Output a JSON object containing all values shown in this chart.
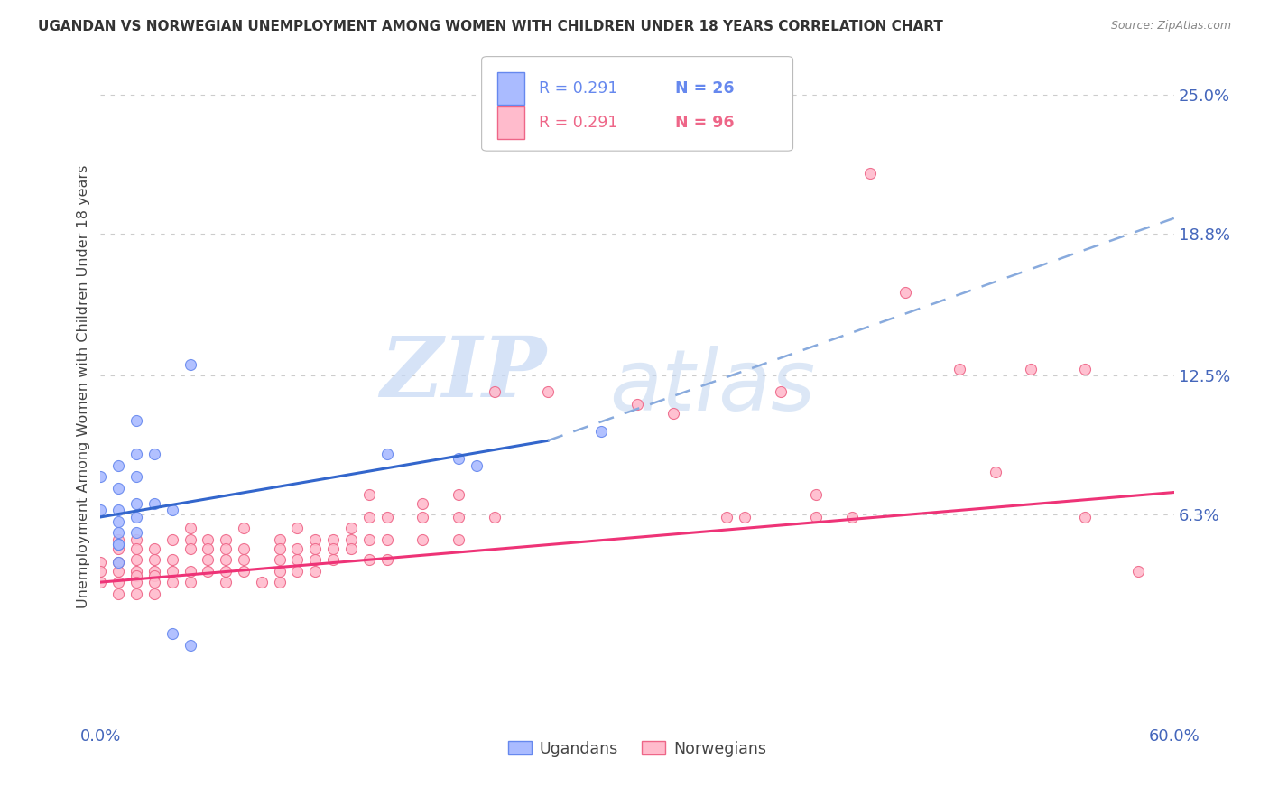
{
  "title": "UGANDAN VS NORWEGIAN UNEMPLOYMENT AMONG WOMEN WITH CHILDREN UNDER 18 YEARS CORRELATION CHART",
  "source": "Source: ZipAtlas.com",
  "ylabel": "Unemployment Among Women with Children Under 18 years",
  "xlim": [
    0.0,
    0.6
  ],
  "ylim": [
    -0.03,
    0.27
  ],
  "xticks": [
    0.0,
    0.1,
    0.2,
    0.3,
    0.4,
    0.5,
    0.6
  ],
  "xticklabels": [
    "0.0%",
    "",
    "",
    "",
    "",
    "",
    "60.0%"
  ],
  "ytick_positions": [
    0.063,
    0.125,
    0.188,
    0.25
  ],
  "ytick_labels": [
    "6.3%",
    "12.5%",
    "18.8%",
    "25.0%"
  ],
  "background_color": "#ffffff",
  "grid_color": "#cccccc",
  "watermark_zip": "ZIP",
  "watermark_atlas": "atlas",
  "ugandan_points": [
    [
      0.0,
      0.08
    ],
    [
      0.0,
      0.065
    ],
    [
      0.01,
      0.085
    ],
    [
      0.01,
      0.075
    ],
    [
      0.01,
      0.065
    ],
    [
      0.01,
      0.06
    ],
    [
      0.01,
      0.055
    ],
    [
      0.01,
      0.05
    ],
    [
      0.01,
      0.05
    ],
    [
      0.01,
      0.042
    ],
    [
      0.02,
      0.105
    ],
    [
      0.02,
      0.09
    ],
    [
      0.02,
      0.08
    ],
    [
      0.02,
      0.068
    ],
    [
      0.02,
      0.062
    ],
    [
      0.02,
      0.055
    ],
    [
      0.03,
      0.09
    ],
    [
      0.03,
      0.068
    ],
    [
      0.04,
      0.065
    ],
    [
      0.05,
      0.13
    ],
    [
      0.16,
      0.09
    ],
    [
      0.2,
      0.088
    ],
    [
      0.21,
      0.085
    ],
    [
      0.28,
      0.1
    ],
    [
      0.04,
      0.01
    ],
    [
      0.05,
      0.005
    ]
  ],
  "norwegian_points": [
    [
      0.0,
      0.042
    ],
    [
      0.0,
      0.038
    ],
    [
      0.0,
      0.033
    ],
    [
      0.01,
      0.052
    ],
    [
      0.01,
      0.048
    ],
    [
      0.01,
      0.042
    ],
    [
      0.01,
      0.038
    ],
    [
      0.01,
      0.033
    ],
    [
      0.01,
      0.028
    ],
    [
      0.02,
      0.052
    ],
    [
      0.02,
      0.048
    ],
    [
      0.02,
      0.043
    ],
    [
      0.02,
      0.038
    ],
    [
      0.02,
      0.036
    ],
    [
      0.02,
      0.033
    ],
    [
      0.02,
      0.028
    ],
    [
      0.03,
      0.048
    ],
    [
      0.03,
      0.043
    ],
    [
      0.03,
      0.038
    ],
    [
      0.03,
      0.036
    ],
    [
      0.03,
      0.033
    ],
    [
      0.03,
      0.028
    ],
    [
      0.04,
      0.052
    ],
    [
      0.04,
      0.043
    ],
    [
      0.04,
      0.038
    ],
    [
      0.04,
      0.033
    ],
    [
      0.05,
      0.057
    ],
    [
      0.05,
      0.052
    ],
    [
      0.05,
      0.048
    ],
    [
      0.05,
      0.038
    ],
    [
      0.05,
      0.033
    ],
    [
      0.06,
      0.052
    ],
    [
      0.06,
      0.048
    ],
    [
      0.06,
      0.043
    ],
    [
      0.06,
      0.038
    ],
    [
      0.07,
      0.052
    ],
    [
      0.07,
      0.048
    ],
    [
      0.07,
      0.043
    ],
    [
      0.07,
      0.038
    ],
    [
      0.07,
      0.033
    ],
    [
      0.08,
      0.057
    ],
    [
      0.08,
      0.048
    ],
    [
      0.08,
      0.043
    ],
    [
      0.08,
      0.038
    ],
    [
      0.09,
      0.033
    ],
    [
      0.1,
      0.052
    ],
    [
      0.1,
      0.048
    ],
    [
      0.1,
      0.043
    ],
    [
      0.1,
      0.038
    ],
    [
      0.1,
      0.033
    ],
    [
      0.11,
      0.057
    ],
    [
      0.11,
      0.048
    ],
    [
      0.11,
      0.043
    ],
    [
      0.11,
      0.038
    ],
    [
      0.12,
      0.052
    ],
    [
      0.12,
      0.048
    ],
    [
      0.12,
      0.043
    ],
    [
      0.12,
      0.038
    ],
    [
      0.13,
      0.052
    ],
    [
      0.13,
      0.048
    ],
    [
      0.13,
      0.043
    ],
    [
      0.14,
      0.057
    ],
    [
      0.14,
      0.052
    ],
    [
      0.14,
      0.048
    ],
    [
      0.15,
      0.072
    ],
    [
      0.15,
      0.062
    ],
    [
      0.15,
      0.052
    ],
    [
      0.15,
      0.043
    ],
    [
      0.16,
      0.062
    ],
    [
      0.16,
      0.052
    ],
    [
      0.16,
      0.043
    ],
    [
      0.18,
      0.068
    ],
    [
      0.18,
      0.062
    ],
    [
      0.18,
      0.052
    ],
    [
      0.2,
      0.072
    ],
    [
      0.2,
      0.062
    ],
    [
      0.2,
      0.052
    ],
    [
      0.22,
      0.118
    ],
    [
      0.22,
      0.062
    ],
    [
      0.25,
      0.118
    ],
    [
      0.3,
      0.112
    ],
    [
      0.32,
      0.108
    ],
    [
      0.35,
      0.062
    ],
    [
      0.36,
      0.062
    ],
    [
      0.38,
      0.118
    ],
    [
      0.4,
      0.072
    ],
    [
      0.4,
      0.062
    ],
    [
      0.42,
      0.062
    ],
    [
      0.43,
      0.215
    ],
    [
      0.45,
      0.162
    ],
    [
      0.48,
      0.128
    ],
    [
      0.5,
      0.082
    ],
    [
      0.52,
      0.128
    ],
    [
      0.55,
      0.128
    ],
    [
      0.55,
      0.062
    ],
    [
      0.58,
      0.038
    ]
  ],
  "ugandan_line_solid": {
    "x0": 0.0,
    "y0": 0.062,
    "x1": 0.25,
    "y1": 0.096
  },
  "ugandan_line_dashed": {
    "x0": 0.25,
    "y0": 0.096,
    "x1": 0.6,
    "y1": 0.195
  },
  "norwegian_line": {
    "x0": 0.0,
    "y0": 0.033,
    "x1": 0.6,
    "y1": 0.073
  },
  "ugandan_line_color": "#3366cc",
  "ugandan_dash_color": "#88aadd",
  "norwegian_line_color": "#ee3377",
  "ugandan_dot_color": "#aabbff",
  "ugandan_dot_edge": "#6688ee",
  "norwegian_dot_color": "#ffbbcc",
  "norwegian_dot_edge": "#ee6688",
  "dot_size": 75,
  "tick_label_color": "#4466bb",
  "title_color": "#333333",
  "source_color": "#888888",
  "axis_label_color": "#444444",
  "legend_r_ugandan": "R = 0.291",
  "legend_n_ugandan": "N = 26",
  "legend_r_norwegian": "R = 0.291",
  "legend_n_norwegian": "N = 96",
  "legend_label_ugandan": "Ugandans",
  "legend_label_norwegian": "Norwegians"
}
